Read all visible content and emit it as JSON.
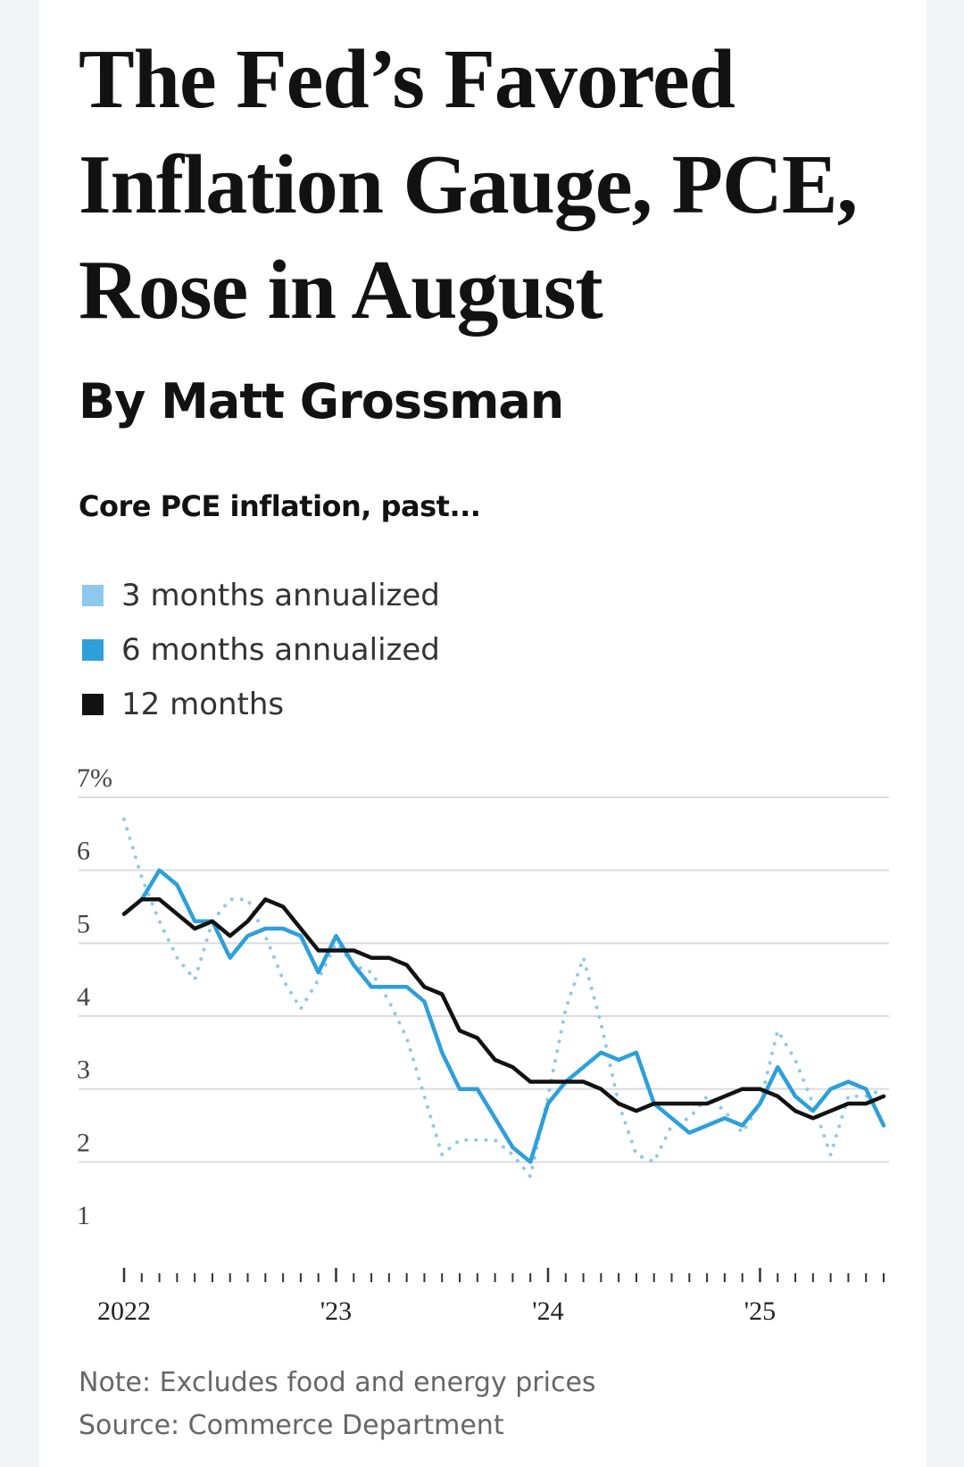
{
  "headline": "The Fed’s Favored Inflation Gauge, PCE, Rose in August",
  "byline": "By Matt Grossman",
  "chart_data": {
    "type": "line",
    "title": "Core PCE inflation, past...",
    "xlabel": "",
    "ylabel": "",
    "ylim": [
      1,
      7
    ],
    "y_ticks": [
      "7%",
      "6",
      "5",
      "4",
      "3",
      "2",
      "1"
    ],
    "x_ticks": [
      "2022",
      "'23",
      "'24",
      "'25"
    ],
    "x_range": [
      "2022-01",
      "2025-08"
    ],
    "grid": "horizontal",
    "legend": "top-left",
    "x": [
      "2022-01",
      "2022-02",
      "2022-03",
      "2022-04",
      "2022-05",
      "2022-06",
      "2022-07",
      "2022-08",
      "2022-09",
      "2022-10",
      "2022-11",
      "2022-12",
      "2023-01",
      "2023-02",
      "2023-03",
      "2023-04",
      "2023-05",
      "2023-06",
      "2023-07",
      "2023-08",
      "2023-09",
      "2023-10",
      "2023-11",
      "2023-12",
      "2024-01",
      "2024-02",
      "2024-03",
      "2024-04",
      "2024-05",
      "2024-06",
      "2024-07",
      "2024-08",
      "2024-09",
      "2024-10",
      "2024-11",
      "2024-12",
      "2025-01",
      "2025-02",
      "2025-03",
      "2025-04",
      "2025-05",
      "2025-06",
      "2025-07",
      "2025-08"
    ],
    "series": [
      {
        "name": "3 months annualized",
        "color": "#8ec8ec",
        "style": "dotted",
        "values": [
          6.7,
          5.9,
          5.3,
          4.8,
          4.5,
          5.3,
          5.6,
          5.6,
          5.1,
          4.5,
          4.1,
          4.5,
          5.0,
          4.7,
          4.6,
          4.2,
          3.7,
          2.9,
          2.1,
          2.3,
          2.3,
          2.3,
          2.1,
          1.8,
          2.9,
          4.1,
          4.8,
          3.9,
          2.8,
          2.1,
          2.0,
          2.5,
          2.6,
          2.9,
          2.7,
          2.4,
          2.8,
          3.8,
          3.4,
          2.8,
          2.1,
          2.9,
          2.9,
          3.0
        ]
      },
      {
        "name": "6 months annualized",
        "color": "#2e9fd8",
        "style": "solid",
        "values": [
          5.4,
          5.6,
          6.0,
          5.8,
          5.3,
          5.3,
          4.8,
          5.1,
          5.2,
          5.2,
          5.1,
          4.6,
          5.1,
          4.7,
          4.4,
          4.4,
          4.4,
          4.2,
          3.5,
          3.0,
          3.0,
          2.6,
          2.2,
          2.0,
          2.8,
          3.1,
          3.3,
          3.5,
          3.4,
          3.5,
          2.8,
          2.6,
          2.4,
          2.5,
          2.6,
          2.5,
          2.8,
          3.3,
          2.9,
          2.7,
          3.0,
          3.1,
          3.0,
          2.5
        ]
      },
      {
        "name": "12 months",
        "color": "#121212",
        "style": "solid",
        "values": [
          5.4,
          5.6,
          5.6,
          5.4,
          5.2,
          5.3,
          5.1,
          5.3,
          5.6,
          5.5,
          5.2,
          4.9,
          4.9,
          4.9,
          4.8,
          4.8,
          4.7,
          4.4,
          4.3,
          3.8,
          3.7,
          3.4,
          3.3,
          3.1,
          3.1,
          3.1,
          3.1,
          3.0,
          2.8,
          2.7,
          2.8,
          2.8,
          2.8,
          2.8,
          2.9,
          3.0,
          3.0,
          2.9,
          2.7,
          2.6,
          2.7,
          2.8,
          2.8,
          2.9
        ]
      }
    ]
  },
  "notes": {
    "note": "Note: Excludes food and energy prices",
    "source": "Source: Commerce Department"
  }
}
